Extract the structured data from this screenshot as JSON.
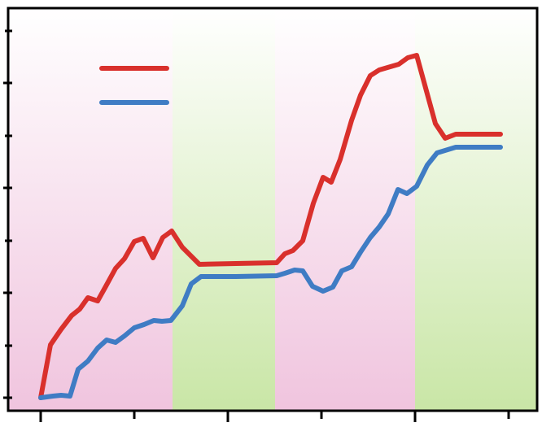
{
  "chart_data": {
    "type": "line",
    "xlim": [
      -40,
      610
    ],
    "xticks": [
      0,
      115,
      230,
      345,
      460,
      575
    ],
    "ylim": [
      -16,
      479
    ],
    "yticks": [
      0,
      64,
      129,
      193,
      258,
      322,
      387,
      451
    ],
    "legend": "upper left",
    "bands": [
      {
        "from": -40,
        "to": 162,
        "color": "#f0c4de"
      },
      {
        "from": 162,
        "to": 288,
        "color": "#c9e6a6"
      },
      {
        "from": 288,
        "to": 460,
        "color": "#f0c4de"
      },
      {
        "from": 460,
        "to": 610,
        "color": "#c9e6a6"
      }
    ],
    "series": [
      {
        "color": "#d9302c",
        "x": [
          0,
          12,
          25,
          38,
          48,
          58,
          70,
          80,
          92,
          103,
          115,
          126,
          138,
          150,
          161,
          174,
          195,
          240,
          290,
          300,
          310,
          322,
          335,
          347,
          357,
          368,
          382,
          393,
          405,
          416,
          440,
          451,
          462,
          485,
          497,
          510,
          565
        ],
        "values": [
          0,
          65,
          84,
          101,
          109,
          123,
          119,
          137,
          159,
          171,
          192,
          196,
          172,
          197,
          205,
          185,
          164,
          165,
          166,
          177,
          181,
          193,
          239,
          271,
          265,
          293,
          341,
          372,
          396,
          403,
          410,
          418,
          421,
          337,
          319,
          324,
          324
        ]
      },
      {
        "color": "#3f7cc4",
        "x": [
          0,
          15,
          25,
          36,
          46,
          58,
          70,
          81,
          92,
          103,
          115,
          127,
          139,
          149,
          160,
          174,
          185,
          197,
          240,
          290,
          300,
          312,
          322,
          334,
          347,
          359,
          370,
          382,
          393,
          405,
          416,
          427,
          439,
          450,
          462,
          475,
          487,
          510,
          565
        ],
        "values": [
          0,
          2,
          3,
          2,
          35,
          45,
          61,
          71,
          68,
          76,
          86,
          90,
          95,
          94,
          95,
          113,
          140,
          149,
          149,
          150,
          153,
          157,
          156,
          137,
          131,
          136,
          156,
          161,
          179,
          197,
          210,
          226,
          256,
          251,
          260,
          286,
          301,
          308,
          308
        ]
      }
    ]
  }
}
